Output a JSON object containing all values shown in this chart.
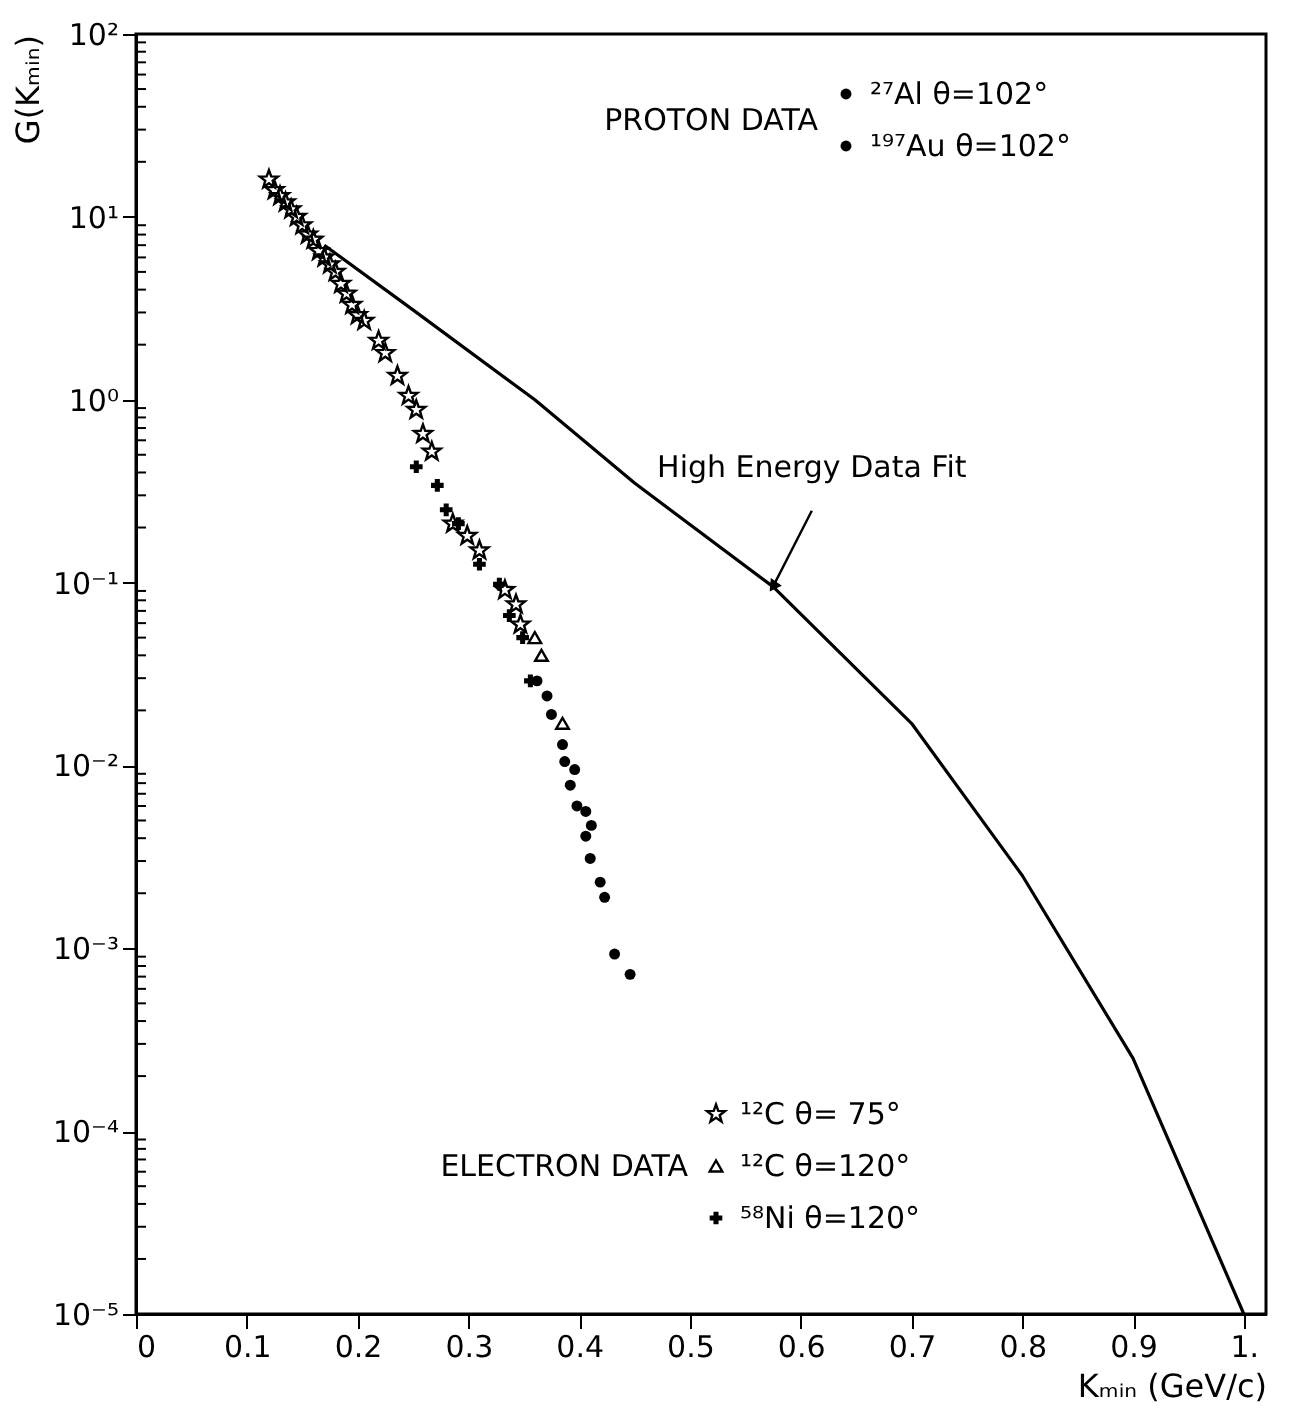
{
  "chart_data": {
    "type": "scatter",
    "xlabel": "Kₘᵢₙ (GeV/c)",
    "ylabel": "G(Kₘᵢₙ)",
    "log": "y",
    "grid": false,
    "legend": "right",
    "xlim": [
      0,
      1.02
    ],
    "ylim": [
      1e-05,
      100
    ],
    "xticks": [
      0,
      0.1,
      0.2,
      0.3,
      0.4,
      0.5,
      0.6,
      0.7,
      0.8,
      0.9,
      {
        "value": 1,
        "label": "1."
      }
    ],
    "yticks": [
      {
        "value": 1e-05,
        "label": "10⁻⁵"
      },
      {
        "value": 2e-05,
        "label": null
      },
      {
        "value": 3e-05,
        "label": null
      },
      {
        "value": 4e-05,
        "label": null
      },
      {
        "value": 5e-05,
        "label": null
      },
      {
        "value": 6e-05,
        "label": null
      },
      {
        "value": 7e-05,
        "label": null
      },
      {
        "value": 8e-05,
        "label": null
      },
      {
        "value": 9e-05,
        "label": null
      },
      {
        "value": 0.0001,
        "label": "10⁻⁴"
      },
      {
        "value": 0.0002,
        "label": null
      },
      {
        "value": 0.0003,
        "label": null
      },
      {
        "value": 0.0004,
        "label": null
      },
      {
        "value": 0.0005,
        "label": null
      },
      {
        "value": 0.0006,
        "label": null
      },
      {
        "value": 0.0007,
        "label": null
      },
      {
        "value": 0.0008,
        "label": null
      },
      {
        "value": 0.0009,
        "label": null
      },
      {
        "value": 0.001,
        "label": "10⁻³"
      },
      {
        "value": 0.002,
        "label": null
      },
      {
        "value": 0.003,
        "label": null
      },
      {
        "value": 0.004,
        "label": null
      },
      {
        "value": 0.005,
        "label": null
      },
      {
        "value": 0.006,
        "label": null
      },
      {
        "value": 0.007,
        "label": null
      },
      {
        "value": 0.008,
        "label": null
      },
      {
        "value": 0.009,
        "label": null
      },
      {
        "value": 0.01,
        "label": "10⁻²"
      },
      {
        "value": 0.02,
        "label": null
      },
      {
        "value": 0.03,
        "label": null
      },
      {
        "value": 0.04,
        "label": null
      },
      {
        "value": 0.05,
        "label": null
      },
      {
        "value": 0.06,
        "label": null
      },
      {
        "value": 0.07,
        "label": null
      },
      {
        "value": 0.08,
        "label": null
      },
      {
        "value": 0.09,
        "label": null
      },
      {
        "value": 0.1,
        "label": "10⁻¹"
      },
      {
        "value": 0.2,
        "label": null
      },
      {
        "value": 0.3,
        "label": null
      },
      {
        "value": 0.4,
        "label": null
      },
      {
        "value": 0.5,
        "label": null
      },
      {
        "value": 0.6,
        "label": null
      },
      {
        "value": 0.7,
        "label": null
      },
      {
        "value": 0.8,
        "label": null
      },
      {
        "value": 0.9,
        "label": null
      },
      {
        "value": 1,
        "label": "10⁰"
      },
      {
        "value": 2,
        "label": null
      },
      {
        "value": 3,
        "label": null
      },
      {
        "value": 4,
        "label": null
      },
      {
        "value": 5,
        "label": null
      },
      {
        "value": 6,
        "label": null
      },
      {
        "value": 7,
        "label": null
      },
      {
        "value": 8,
        "label": null
      },
      {
        "value": 9,
        "label": null
      },
      {
        "value": 10,
        "label": "10¹"
      },
      {
        "value": 20,
        "label": null
      },
      {
        "value": 30,
        "label": null
      },
      {
        "value": 40,
        "label": null
      },
      {
        "value": 50,
        "label": null
      },
      {
        "value": 60,
        "label": null
      },
      {
        "value": 70,
        "label": null
      },
      {
        "value": 80,
        "label": null
      },
      {
        "value": 90,
        "label": null
      },
      {
        "value": 100,
        "label": "10²"
      }
    ],
    "annotations": [
      "PROTON DATA",
      "ELECTRON DATA",
      {
        "text": "High Energy Data Fit",
        "x": 0.575,
        "y": 0.095
      }
    ],
    "series": [
      {
        "name": "²⁷Al θ=102°",
        "color": "#000000",
        "marker": "circle",
        "x": [
          0.375,
          0.387,
          0.392,
          0.398,
          0.406,
          0.41
        ],
        "values": [
          0.019,
          0.0105,
          0.0078,
          0.006,
          0.0041,
          0.0031
        ]
      },
      {
        "name": "¹⁹⁷Au θ=102°",
        "color": "#000000",
        "marker": "circle",
        "x": [
          0.362,
          0.371,
          0.385,
          0.396,
          0.406,
          0.411,
          0.419,
          0.423,
          0.432,
          0.446
        ],
        "values": [
          0.029,
          0.024,
          0.013,
          0.0095,
          0.0056,
          0.0047,
          0.0023,
          0.0019,
          0.00093,
          0.00072
        ]
      },
      {
        "name": "¹²C θ= 75°",
        "color": "#000000",
        "marker": "star",
        "x": [
          0.12,
          0.125,
          0.13,
          0.135,
          0.14,
          0.145,
          0.15,
          0.155,
          0.16,
          0.165,
          0.17,
          0.175,
          0.18,
          0.185,
          0.19,
          0.195,
          0.2,
          0.206,
          0.219,
          0.225,
          0.236,
          0.246,
          0.253,
          0.259,
          0.267,
          0.286,
          0.299,
          0.31,
          0.333,
          0.343,
          0.347
        ],
        "values": [
          16,
          14,
          13,
          12,
          11,
          10,
          9,
          8,
          7.5,
          6.5,
          6,
          5.5,
          5,
          4.3,
          3.8,
          3.3,
          2.9,
          2.7,
          2.1,
          1.8,
          1.35,
          1.05,
          0.88,
          0.65,
          0.52,
          0.21,
          0.18,
          0.15,
          0.091,
          0.076,
          0.059
        ]
      },
      {
        "name": "¹²C θ=120°",
        "color": "#000000",
        "marker": "triangle",
        "x": [
          0.36,
          0.366,
          0.385
        ],
        "values": [
          0.05,
          0.04,
          0.017
        ]
      },
      {
        "name": "⁵⁸Ni θ=120°",
        "color": "#000000",
        "marker": "cross",
        "x": [
          0.253,
          0.272,
          0.28,
          0.291,
          0.31,
          0.328,
          0.337,
          0.349,
          0.356
        ],
        "values": [
          0.43,
          0.34,
          0.25,
          0.21,
          0.126,
          0.098,
          0.066,
          0.05,
          0.029
        ]
      },
      {
        "type": "line",
        "color": "#000000",
        "x": [
          0.17,
          0.25,
          0.36,
          0.45,
          0.575,
          0.7,
          0.8,
          0.9,
          1.0
        ],
        "values": [
          7,
          3.1,
          1.0,
          0.35,
          0.095,
          0.017,
          0.0025,
          0.00025,
          1e-05
        ]
      }
    ]
  }
}
